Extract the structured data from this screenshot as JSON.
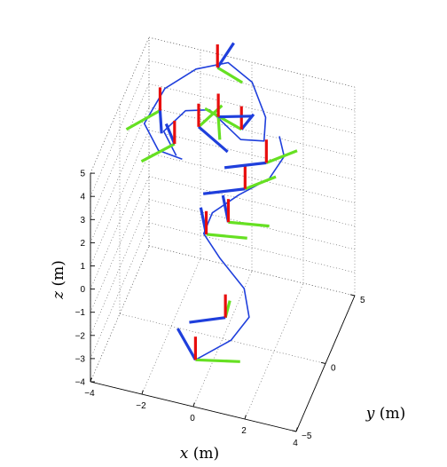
{
  "chart_data": {
    "type": "line",
    "projection": "3d",
    "grid": true,
    "axes": {
      "x": {
        "label_var": "x",
        "label_unit": "(m)",
        "range": [
          -4,
          4
        ],
        "ticks": [
          -4,
          -2,
          0,
          2,
          4
        ],
        "tick_labels": [
          "−4",
          "−2",
          "0",
          "2",
          "4"
        ]
      },
      "y": {
        "label_var": "y",
        "label_unit": "(m)",
        "range": [
          -5,
          5
        ],
        "ticks": [
          -5,
          0,
          5
        ],
        "tick_labels": [
          "−5",
          "0",
          "5"
        ]
      },
      "z": {
        "label_var": "z",
        "label_unit": "(m)",
        "range": [
          -4,
          5
        ],
        "ticks": [
          -4,
          -3,
          -2,
          -1,
          0,
          1,
          2,
          3,
          4,
          5
        ],
        "tick_labels": [
          "−4",
          "−3",
          "−2",
          "−1",
          "0",
          "1",
          "2",
          "3",
          "4",
          "5"
        ]
      }
    },
    "series": [
      {
        "style": "line",
        "color": "#1f3fdc",
        "points": [
          [
            -0.6,
            -2.0,
            -3.9
          ],
          [
            0.6,
            -1.2,
            -3.2
          ],
          [
            1.1,
            -0.3,
            -2.6
          ],
          [
            0.7,
            0.6,
            -2.0
          ],
          [
            -0.4,
            1.3,
            -1.4
          ],
          [
            -1.1,
            1.6,
            -0.7
          ],
          [
            -0.9,
            2.2,
            -0.1
          ],
          [
            -0.1,
            3.2,
            0.3
          ],
          [
            0.9,
            4.0,
            0.8
          ],
          [
            1.3,
            4.8,
            1.4
          ],
          [
            1.0,
            5.3,
            1.9
          ]
        ]
      },
      {
        "style": "line",
        "color": "#1f3fdc",
        "points": [
          [
            -1.6,
            -0.9,
            4.0
          ],
          [
            -2.2,
            -0.4,
            4.6
          ],
          [
            -1.6,
            0.7,
            5.0
          ],
          [
            -0.8,
            1.3,
            4.9
          ],
          [
            0.5,
            0.9,
            4.2
          ],
          [
            1.2,
            1.8,
            3.8
          ],
          [
            0.9,
            3.4,
            3.8
          ],
          [
            0.1,
            4.6,
            4.4
          ],
          [
            -0.9,
            4.9,
            4.8
          ],
          [
            -1.9,
            3.8,
            4.9
          ],
          [
            -2.7,
            2.0,
            4.9
          ],
          [
            -3.0,
            -0.2,
            4.6
          ],
          [
            -2.2,
            -1.3,
            4.3
          ],
          [
            -1.3,
            -1.2,
            4.1
          ]
        ]
      }
    ],
    "frames": [
      {
        "origin": [
          -0.6,
          -2.0,
          -3.9
        ],
        "x_axis": [
          -1.1,
          1.8,
          0.0
        ],
        "y_axis": [
          1.6,
          0.6,
          0.0
        ],
        "z_axis": [
          0.0,
          0.0,
          1.0
        ]
      },
      {
        "origin": [
          0.2,
          -0.4,
          -2.8
        ],
        "x_axis": [
          -1.2,
          -0.9,
          0.0
        ],
        "y_axis": [
          -0.1,
          1.2,
          0.0
        ],
        "z_axis": [
          0.0,
          0.0,
          1.0
        ]
      },
      {
        "origin": [
          -1.0,
          1.6,
          -0.7
        ],
        "x_axis": [
          -0.6,
          1.7,
          0.0
        ],
        "y_axis": [
          1.5,
          0.4,
          0.0
        ],
        "z_axis": [
          0.0,
          0.0,
          1.0
        ]
      },
      {
        "origin": [
          -0.3,
          2.3,
          -0.4
        ],
        "x_axis": [
          -0.6,
          1.7,
          0.0
        ],
        "y_axis": [
          1.5,
          0.4,
          0.0
        ],
        "z_axis": [
          0.0,
          0.0,
          1.0
        ]
      },
      {
        "origin": [
          0.1,
          3.4,
          0.5
        ],
        "x_axis": [
          -1.4,
          -1.0,
          0.0
        ],
        "y_axis": [
          0.9,
          1.3,
          0.0
        ],
        "z_axis": [
          0.0,
          0.0,
          1.0
        ]
      },
      {
        "origin": [
          0.7,
          4.4,
          1.2
        ],
        "x_axis": [
          -1.4,
          -1.0,
          0.0
        ],
        "y_axis": [
          0.9,
          1.3,
          0.0
        ],
        "z_axis": [
          0.0,
          0.0,
          1.0
        ]
      },
      {
        "origin": [
          -1.8,
          -0.3,
          4.1
        ],
        "x_axis": [
          -0.6,
          1.2,
          0.0
        ],
        "y_axis": [
          -0.9,
          -1.7,
          0.0
        ],
        "z_axis": [
          0.0,
          0.0,
          1.0
        ]
      },
      {
        "origin": [
          -1.0,
          0.3,
          4.7
        ],
        "x_axis": [
          1.4,
          -1.2,
          0.0
        ],
        "y_axis": [
          0.5,
          1.8,
          0.0
        ],
        "z_axis": [
          0.0,
          0.0,
          1.0
        ]
      },
      {
        "origin": [
          -2.5,
          0.3,
          5.0
        ],
        "x_axis": [
          0.4,
          -1.5,
          0.0
        ],
        "y_axis": [
          -0.9,
          -1.8,
          0.0
        ],
        "z_axis": [
          0.0,
          0.0,
          1.0
        ]
      },
      {
        "origin": [
          0.3,
          1.9,
          4.0
        ],
        "x_axis": [
          0.2,
          1.2,
          0.0
        ],
        "y_axis": [
          -1.6,
          0.8,
          0.0
        ],
        "z_axis": [
          0.0,
          0.0,
          1.0
        ]
      },
      {
        "origin": [
          -1.2,
          4.4,
          4.8
        ],
        "x_axis": [
          0.2,
          1.9,
          0.0
        ],
        "y_axis": [
          1.1,
          -0.6,
          0.0
        ],
        "z_axis": [
          0.0,
          0.0,
          1.0
        ]
      },
      {
        "origin": [
          -0.6,
          1.9,
          4.3
        ],
        "x_axis": [
          1.2,
          0.6,
          0.0
        ],
        "y_axis": [
          0.4,
          -1.5,
          0.0
        ],
        "z_axis": [
          0.0,
          0.0,
          1.0
        ]
      }
    ],
    "frame_colors": {
      "x_axis": "#1f3fdc",
      "y_axis": "#66e022",
      "z_axis": "#e80d0d"
    }
  }
}
